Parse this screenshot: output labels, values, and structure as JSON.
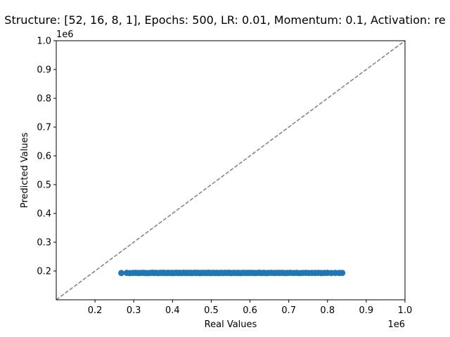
{
  "chart_data": {
    "type": "scatter",
    "title": "Structure: [52, 16, 8, 1], Epochs: 500, LR: 0.01, Momentum: 0.1, Activation: re",
    "xlabel": "Real Values",
    "ylabel": "Predicted Values",
    "x_offset_label": "1e6",
    "y_offset_label": "1e6",
    "xlim": [
      100000,
      1000000
    ],
    "ylim": [
      100000,
      1000000
    ],
    "x_ticks": [
      200000,
      300000,
      400000,
      500000,
      600000,
      700000,
      800000,
      900000,
      1000000
    ],
    "x_tick_labels": [
      "0.2",
      "0.3",
      "0.4",
      "0.5",
      "0.6",
      "0.7",
      "0.8",
      "0.9",
      "1.0"
    ],
    "y_ticks": [
      200000,
      300000,
      400000,
      500000,
      600000,
      700000,
      800000,
      900000,
      1000000
    ],
    "y_tick_labels": [
      "0.2",
      "0.3",
      "0.4",
      "0.5",
      "0.6",
      "0.7",
      "0.8",
      "0.9",
      "1.0"
    ],
    "grid": false,
    "reference_line": {
      "style": "dashed",
      "color": "#808080",
      "from": [
        100000,
        100000
      ],
      "to": [
        1000000,
        1000000
      ]
    },
    "series": [
      {
        "color": "#1f77b4",
        "points": [
          [
            268000,
            193000
          ],
          [
            282000,
            193500
          ],
          [
            290000,
            192800
          ],
          [
            298000,
            193200
          ],
          [
            305000,
            193600
          ],
          [
            312000,
            192900
          ],
          [
            318000,
            193300
          ],
          [
            325000,
            193700
          ],
          [
            330000,
            193100
          ],
          [
            336000,
            192700
          ],
          [
            342000,
            193400
          ],
          [
            348000,
            193800
          ],
          [
            353000,
            193000
          ],
          [
            358000,
            193500
          ],
          [
            363000,
            192800
          ],
          [
            368000,
            193600
          ],
          [
            372000,
            193200
          ],
          [
            377000,
            193900
          ],
          [
            381000,
            192900
          ],
          [
            386000,
            193400
          ],
          [
            390000,
            193700
          ],
          [
            394000,
            193000
          ],
          [
            398000,
            193500
          ],
          [
            402000,
            192800
          ],
          [
            406000,
            193300
          ],
          [
            410000,
            193800
          ],
          [
            414000,
            193100
          ],
          [
            418000,
            193600
          ],
          [
            422000,
            192900
          ],
          [
            426000,
            193400
          ],
          [
            430000,
            193800
          ],
          [
            434000,
            193000
          ],
          [
            438000,
            193500
          ],
          [
            442000,
            193200
          ],
          [
            446000,
            193700
          ],
          [
            450000,
            192900
          ],
          [
            454000,
            193400
          ],
          [
            458000,
            193900
          ],
          [
            462000,
            193100
          ],
          [
            466000,
            193600
          ],
          [
            470000,
            192800
          ],
          [
            474000,
            193300
          ],
          [
            478000,
            193700
          ],
          [
            482000,
            193000
          ],
          [
            486000,
            193500
          ],
          [
            490000,
            193200
          ],
          [
            494000,
            193800
          ],
          [
            498000,
            192900
          ],
          [
            502000,
            193400
          ],
          [
            506000,
            193600
          ],
          [
            510000,
            193100
          ],
          [
            514000,
            193500
          ],
          [
            518000,
            192800
          ],
          [
            522000,
            193300
          ],
          [
            526000,
            193700
          ],
          [
            530000,
            193000
          ],
          [
            535000,
            193500
          ],
          [
            540000,
            193200
          ],
          [
            545000,
            193800
          ],
          [
            550000,
            192900
          ],
          [
            555000,
            193400
          ],
          [
            560000,
            193600
          ],
          [
            565000,
            193100
          ],
          [
            570000,
            193500
          ],
          [
            575000,
            192800
          ],
          [
            580000,
            193300
          ],
          [
            585000,
            193700
          ],
          [
            590000,
            193000
          ],
          [
            595000,
            193500
          ],
          [
            600000,
            193200
          ],
          [
            606000,
            193600
          ],
          [
            612000,
            192900
          ],
          [
            618000,
            193400
          ],
          [
            624000,
            193800
          ],
          [
            630000,
            193100
          ],
          [
            636000,
            193500
          ],
          [
            642000,
            192800
          ],
          [
            648000,
            193300
          ],
          [
            655000,
            193700
          ],
          [
            662000,
            193000
          ],
          [
            669000,
            193500
          ],
          [
            676000,
            193200
          ],
          [
            683000,
            193600
          ],
          [
            690000,
            192900
          ],
          [
            697000,
            193400
          ],
          [
            704000,
            193700
          ],
          [
            712000,
            193100
          ],
          [
            720000,
            193500
          ],
          [
            728000,
            192800
          ],
          [
            736000,
            193300
          ],
          [
            744000,
            193600
          ],
          [
            752000,
            193000
          ],
          [
            760000,
            193400
          ],
          [
            768000,
            193200
          ],
          [
            776000,
            193600
          ],
          [
            784000,
            192900
          ],
          [
            792000,
            193300
          ],
          [
            800000,
            193500
          ],
          [
            810000,
            193100
          ],
          [
            820000,
            193400
          ],
          [
            830000,
            193200
          ],
          [
            838000,
            193300
          ]
        ]
      }
    ]
  }
}
